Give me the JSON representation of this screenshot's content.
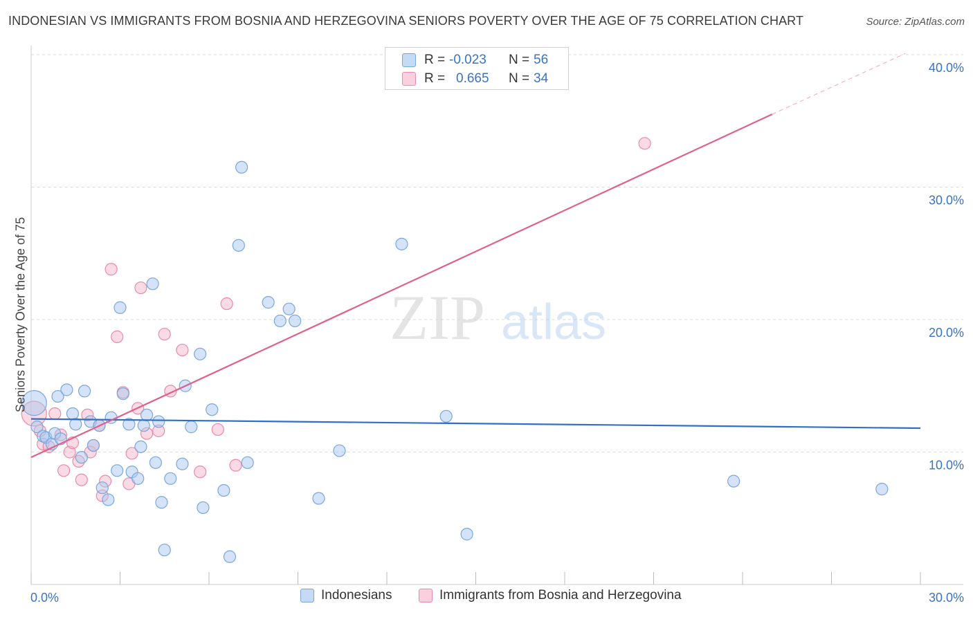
{
  "title": "INDONESIAN VS IMMIGRANTS FROM BOSNIA AND HERZEGOVINA SENIORS POVERTY OVER THE AGE OF 75 CORRELATION CHART",
  "source": "Source: ZipAtlas.com",
  "watermark": {
    "zip": "ZIP",
    "atlas": "atlas"
  },
  "legend_box": {
    "rows": [
      {
        "r_label": "R =",
        "r_value": "-0.023",
        "n_label": "N =",
        "n_value": "56"
      },
      {
        "r_label": "R =",
        "r_value": "0.665",
        "n_label": "N =",
        "n_value": "34"
      }
    ]
  },
  "colors": {
    "blue_fill": "#a9c8ef",
    "blue_stroke": "#7aa6dc",
    "blue_line": "#2f6fcb",
    "pink_fill": "#f6b8cc",
    "pink_stroke": "#e88aa8",
    "pink_line": "#e0608a",
    "axis_label": "#3a72c4",
    "grid": "#d9d9d9"
  },
  "chart_data": {
    "type": "scatter",
    "title": "INDONESIAN VS IMMIGRANTS FROM BOSNIA AND HERZEGOVINA SENIORS POVERTY OVER THE AGE OF 75 CORRELATION CHART",
    "xlabel": "",
    "ylabel": "Seniors Poverty Over the Age of 75",
    "xlim": [
      0,
      30
    ],
    "ylim": [
      0,
      40
    ],
    "x_tick_labels": [
      "0.0%",
      "30.0%"
    ],
    "y_tick_labels": [
      "10.0%",
      "20.0%",
      "30.0%",
      "40.0%"
    ],
    "y_ticks": [
      10,
      20,
      30,
      40
    ],
    "grid": true,
    "legend_position": "bottom",
    "series": [
      {
        "name": "Indonesians",
        "color": "#a9c8ef",
        "r": -0.023,
        "n": 56,
        "trend": {
          "x": [
            0,
            30
          ],
          "y": [
            12.5,
            11.8
          ]
        },
        "points": [
          {
            "x": 0.1,
            "y": 13.7,
            "big": true
          },
          {
            "x": 0.2,
            "y": 11.9
          },
          {
            "x": 0.4,
            "y": 11.2
          },
          {
            "x": 0.5,
            "y": 11.1
          },
          {
            "x": 0.7,
            "y": 10.6
          },
          {
            "x": 0.8,
            "y": 11.4
          },
          {
            "x": 0.9,
            "y": 14.2
          },
          {
            "x": 1.0,
            "y": 11.0
          },
          {
            "x": 1.2,
            "y": 14.7
          },
          {
            "x": 1.4,
            "y": 12.9
          },
          {
            "x": 1.5,
            "y": 12.1
          },
          {
            "x": 1.7,
            "y": 9.6
          },
          {
            "x": 1.8,
            "y": 14.6
          },
          {
            "x": 2.0,
            "y": 12.3
          },
          {
            "x": 2.1,
            "y": 10.5
          },
          {
            "x": 2.3,
            "y": 12.0
          },
          {
            "x": 2.4,
            "y": 7.3
          },
          {
            "x": 2.6,
            "y": 6.4
          },
          {
            "x": 2.7,
            "y": 12.6
          },
          {
            "x": 2.9,
            "y": 8.6
          },
          {
            "x": 3.0,
            "y": 20.9
          },
          {
            "x": 3.1,
            "y": 14.4
          },
          {
            "x": 3.3,
            "y": 12.1
          },
          {
            "x": 3.4,
            "y": 8.5
          },
          {
            "x": 3.6,
            "y": 8.0
          },
          {
            "x": 3.7,
            "y": 10.4
          },
          {
            "x": 3.8,
            "y": 12.0
          },
          {
            "x": 3.9,
            "y": 12.8
          },
          {
            "x": 4.1,
            "y": 22.7
          },
          {
            "x": 4.2,
            "y": 9.2
          },
          {
            "x": 4.3,
            "y": 12.3
          },
          {
            "x": 4.4,
            "y": 6.2
          },
          {
            "x": 4.5,
            "y": 2.6
          },
          {
            "x": 4.7,
            "y": 8.0
          },
          {
            "x": 5.1,
            "y": 9.1
          },
          {
            "x": 5.2,
            "y": 15.0
          },
          {
            "x": 5.4,
            "y": 11.9
          },
          {
            "x": 5.7,
            "y": 17.4
          },
          {
            "x": 5.8,
            "y": 5.8
          },
          {
            "x": 6.1,
            "y": 13.2
          },
          {
            "x": 6.5,
            "y": 7.1
          },
          {
            "x": 6.7,
            "y": 2.1
          },
          {
            "x": 7.0,
            "y": 25.6
          },
          {
            "x": 7.1,
            "y": 31.5
          },
          {
            "x": 7.3,
            "y": 9.2
          },
          {
            "x": 8.0,
            "y": 21.3
          },
          {
            "x": 8.4,
            "y": 19.9
          },
          {
            "x": 8.7,
            "y": 20.8
          },
          {
            "x": 8.9,
            "y": 19.9
          },
          {
            "x": 9.7,
            "y": 6.5
          },
          {
            "x": 10.4,
            "y": 10.1
          },
          {
            "x": 12.5,
            "y": 25.7
          },
          {
            "x": 14.0,
            "y": 12.7
          },
          {
            "x": 14.7,
            "y": 3.8
          },
          {
            "x": 23.7,
            "y": 7.8
          },
          {
            "x": 28.7,
            "y": 7.2
          }
        ]
      },
      {
        "name": "Immigrants from Bosnia and Herzegovina",
        "color": "#f6b8cc",
        "r": 0.665,
        "n": 34,
        "trend": {
          "x": [
            0,
            25
          ],
          "y": [
            9.6,
            35.5
          ]
        },
        "trend_dashed": {
          "x": [
            25,
            29.5
          ],
          "y": [
            35.5,
            40.1
          ]
        },
        "points": [
          {
            "x": 0.1,
            "y": 12.9,
            "big": true
          },
          {
            "x": 0.3,
            "y": 11.6
          },
          {
            "x": 0.4,
            "y": 10.6
          },
          {
            "x": 0.6,
            "y": 10.4
          },
          {
            "x": 0.8,
            "y": 12.9
          },
          {
            "x": 1.0,
            "y": 11.3
          },
          {
            "x": 1.1,
            "y": 8.6
          },
          {
            "x": 1.3,
            "y": 10.0
          },
          {
            "x": 1.4,
            "y": 10.7
          },
          {
            "x": 1.6,
            "y": 9.3
          },
          {
            "x": 1.7,
            "y": 7.9
          },
          {
            "x": 1.9,
            "y": 12.8
          },
          {
            "x": 2.0,
            "y": 10.0
          },
          {
            "x": 2.1,
            "y": 10.5
          },
          {
            "x": 2.3,
            "y": 12.0
          },
          {
            "x": 2.4,
            "y": 6.7
          },
          {
            "x": 2.5,
            "y": 7.8
          },
          {
            "x": 2.7,
            "y": 23.8
          },
          {
            "x": 2.9,
            "y": 18.7
          },
          {
            "x": 3.1,
            "y": 14.5
          },
          {
            "x": 3.3,
            "y": 7.6
          },
          {
            "x": 3.4,
            "y": 9.9
          },
          {
            "x": 3.6,
            "y": 13.3
          },
          {
            "x": 3.7,
            "y": 22.4
          },
          {
            "x": 3.9,
            "y": 11.4
          },
          {
            "x": 4.3,
            "y": 11.6
          },
          {
            "x": 4.5,
            "y": 18.9
          },
          {
            "x": 4.7,
            "y": 14.6
          },
          {
            "x": 5.1,
            "y": 17.7
          },
          {
            "x": 5.7,
            "y": 8.5
          },
          {
            "x": 6.3,
            "y": 11.7
          },
          {
            "x": 6.6,
            "y": 21.2
          },
          {
            "x": 6.9,
            "y": 9.0
          },
          {
            "x": 20.7,
            "y": 33.3
          }
        ]
      }
    ]
  }
}
